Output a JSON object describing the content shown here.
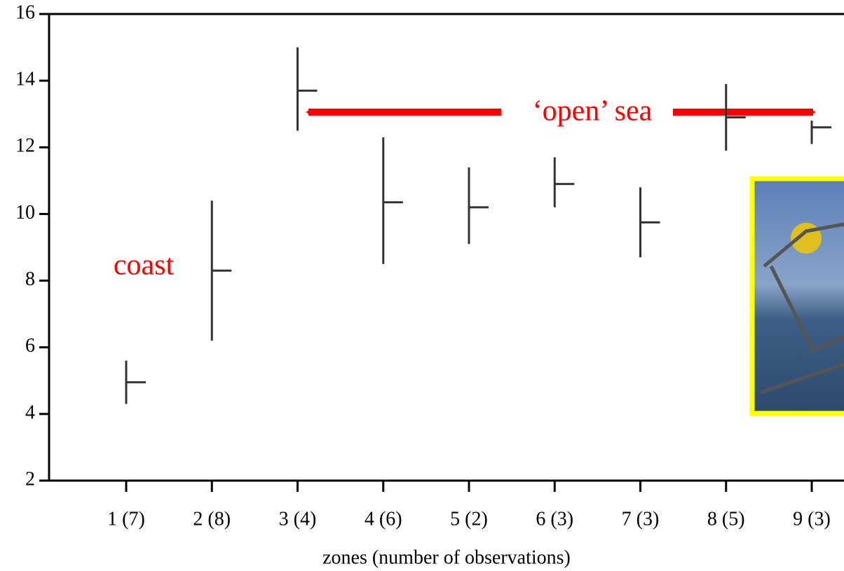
{
  "chart_data": {
    "type": "range",
    "xlabel": "zones (number of observations)",
    "categories": [
      "1 (7)",
      "2 (8)",
      "3 (4)",
      "4 (6)",
      "5 (2)",
      "6 (3)",
      "7 (3)",
      "8 (5)",
      "9 (3)"
    ],
    "high": [
      5.6,
      10.4,
      15.0,
      12.3,
      11.4,
      11.7,
      10.8,
      13.9,
      12.8
    ],
    "low": [
      4.3,
      6.2,
      12.5,
      8.5,
      9.1,
      10.2,
      8.7,
      11.9,
      12.1
    ],
    "mean": [
      4.95,
      8.3,
      13.7,
      10.35,
      10.2,
      10.9,
      9.75,
      12.9,
      12.6
    ],
    "color": "#333333",
    "ylim": [
      2,
      16
    ],
    "yticks": [
      2,
      4,
      6,
      8,
      10,
      12,
      14,
      16
    ],
    "annotations": [
      "coast",
      "‘open’ sea"
    ]
  }
}
